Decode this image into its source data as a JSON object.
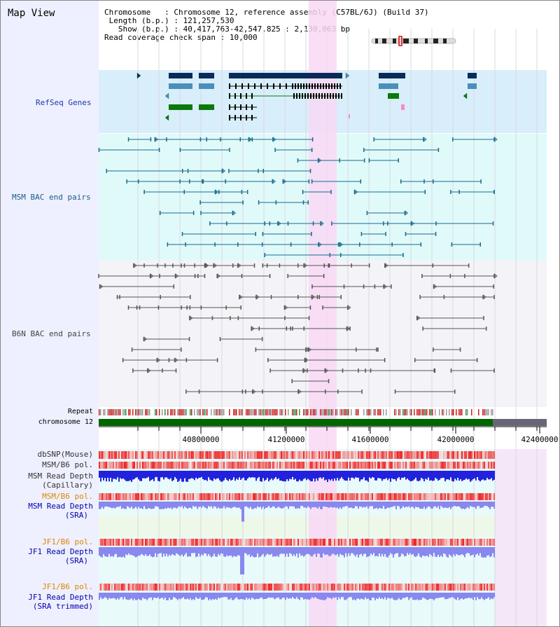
{
  "view_title": "Map View",
  "info": {
    "chromosome_label": "Chromosome",
    "chromosome_value": "Chromosome 12, reference assembly (C57BL/6J) (Build 37)",
    "length_label": "Length (b.p.)",
    "length_value": "121,257,530",
    "show_label": "Show (b.p.)",
    "show_value": "40,417,763-42,547,825 : 2,130,063 bp",
    "coverage_label": "Read coverage check span",
    "coverage_value": "10,000"
  },
  "tracks": {
    "refseq": "RefSeq Genes",
    "msm_bac": "MSM BAC end pairs",
    "b6n_bac": "B6N BAC end pairs",
    "repeat": "Repeat",
    "chromosome": "chromosome 12",
    "dbsnp": "dbSNP(Mouse)",
    "msm_b6_pol": "MSM/B6 pol.",
    "msm_depth_cap_1": "MSM Read Depth",
    "msm_depth_cap_2": "(Capillary)",
    "msm_b6_pol_2": "MSM/B6 pol.",
    "msm_depth_sra_1": "MSM Read Depth",
    "msm_depth_sra_2": "(SRA)",
    "jf1_b6_pol": "JF1/B6 pol.",
    "jf1_depth_sra_1": "JF1 Read Depth",
    "jf1_depth_sra_2": "(SRA)",
    "jf1_b6_pol_2": "JF1/B6 pol.",
    "jf1_depth_trim_1": "JF1 Read Depth",
    "jf1_depth_trim_2": "(SRA trimmed)"
  },
  "axis": {
    "ticks": [
      "40800000",
      "41200000",
      "41600000",
      "42000000",
      "42400000"
    ]
  },
  "colors": {
    "refseq_bg": "#d8eefa",
    "msm_bg": "#e0fafa",
    "b6n_bg": "#f4f4f8",
    "highlight": "#f8d8f4",
    "chrom_green": "#006600",
    "chrom_gray": "#666677",
    "gene_navy": "#0a2a5a",
    "gene_blue": "#4a8fb8",
    "gene_green": "#0a7a0a",
    "msm_teal": "#1a6a8a",
    "b6n_gray": "#555555",
    "depth_blue": "#2222dd",
    "depth_light": "#8888ee"
  }
}
